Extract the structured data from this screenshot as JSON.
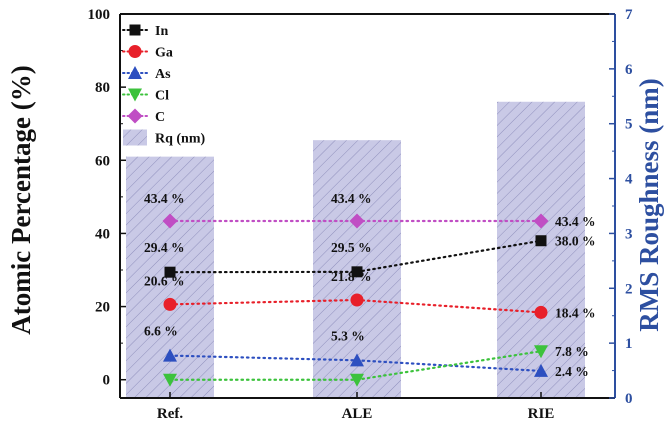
{
  "chart_data": {
    "type": "bar",
    "categories": [
      "Ref.",
      "ALE",
      "RIE"
    ],
    "ylabel_left": "Atomic Percentage (%)",
    "ylabel_right": "RMS Roughness (nm)",
    "ylim_left": [
      -5,
      100
    ],
    "ylim_right": [
      0,
      7
    ],
    "yticks_left": [
      "0",
      "20",
      "40",
      "60",
      "80",
      "100"
    ],
    "yticks_right": [
      "0",
      "1",
      "2",
      "3",
      "4",
      "5",
      "6",
      "7"
    ],
    "bars": {
      "name": "Rq (nm)",
      "axis": "right",
      "values": [
        4.4,
        4.7,
        5.4
      ],
      "color": "#c9c9e6",
      "hatch_color": "#9090bd"
    },
    "series": [
      {
        "name": "In",
        "marker": "square",
        "color": "#111111",
        "values": [
          29.4,
          29.5,
          38.0
        ],
        "labels": [
          "29.4 %",
          "29.5 %",
          "38.0 %"
        ]
      },
      {
        "name": "Ga",
        "marker": "circle",
        "color": "#e8202a",
        "values": [
          20.6,
          21.8,
          18.4
        ],
        "labels": [
          "20.6 %",
          "21.8 %",
          "18.4 %"
        ]
      },
      {
        "name": "As",
        "marker": "triangle-up",
        "color": "#2d4fc0",
        "values": [
          6.6,
          5.3,
          2.4
        ],
        "labels": [
          "6.6 %",
          "5.3 %",
          "2.4 %"
        ]
      },
      {
        "name": "Cl",
        "marker": "triangle-down",
        "color": "#3cc23c",
        "values": [
          0,
          0,
          7.8
        ],
        "labels": [
          "",
          "",
          "7.8 %"
        ]
      },
      {
        "name": "C",
        "marker": "diamond",
        "color": "#c04ec4",
        "values": [
          43.4,
          43.4,
          43.4
        ],
        "labels": [
          "43.4 %",
          "43.4 %",
          "43.4 %"
        ]
      }
    ],
    "legend_position": "top-left",
    "grid": false
  }
}
